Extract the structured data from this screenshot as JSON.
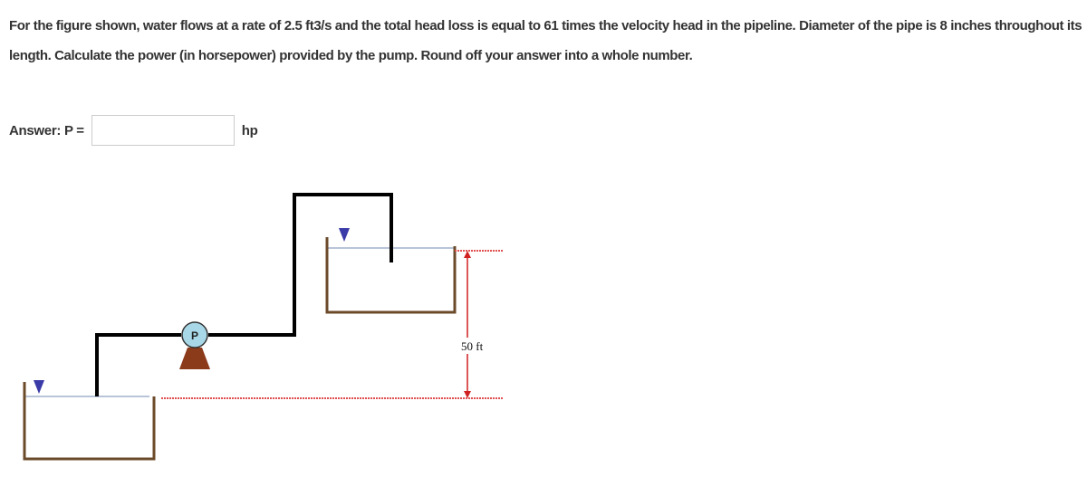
{
  "question": {
    "text": "For the figure shown, water flows at a rate of 2.5 ft3/s and the total head loss is equal to 61 times the velocity head in the pipeline. Diameter of the pipe is 8 inches throughout its length. Calculate the power (in horsepower) provided by the pump. Round off your answer into a whole number."
  },
  "answer": {
    "label": "Answer: P =",
    "unit": "hp"
  },
  "figure": {
    "pump_label": "P",
    "height_label": "50 ft"
  }
}
